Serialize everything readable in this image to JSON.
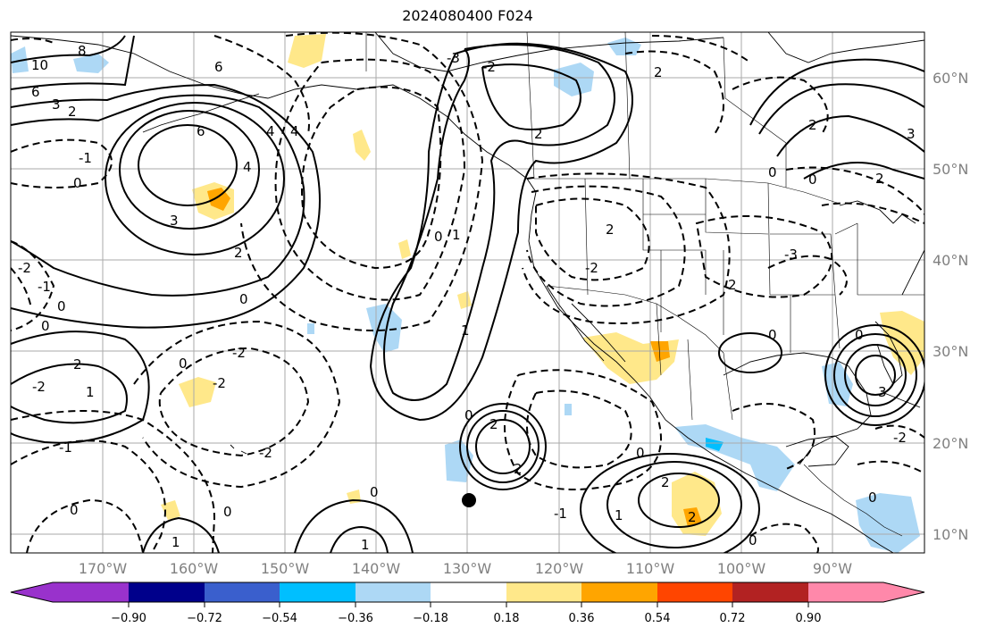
{
  "title": "2024080400 F024",
  "map": {
    "lon_labels": [
      "170°W",
      "160°W",
      "150°W",
      "140°W",
      "130°W",
      "120°W",
      "110°W",
      "100°W",
      "90°W"
    ],
    "lat_labels": [
      "60°N",
      "50°N",
      "40°N",
      "30°N",
      "20°N",
      "10°N"
    ],
    "contour_labels": [
      "0",
      "1",
      "2",
      "3",
      "4",
      "6",
      "8",
      "10",
      "-1",
      "-2",
      "-3"
    ]
  },
  "colorbar": {
    "colors": [
      "#9932cc",
      "#00008b",
      "#3a5fcd",
      "#00bfff",
      "#add8f5",
      "#ffffff",
      "#ffe88a",
      "#ffa500",
      "#ff4500",
      "#b22222",
      "#ff88aa"
    ],
    "tick_labels": [
      "−0.90",
      "−0.72",
      "−0.54",
      "−0.36",
      "−0.18",
      "0.18",
      "0.36",
      "0.54",
      "0.72",
      "0.90"
    ]
  }
}
